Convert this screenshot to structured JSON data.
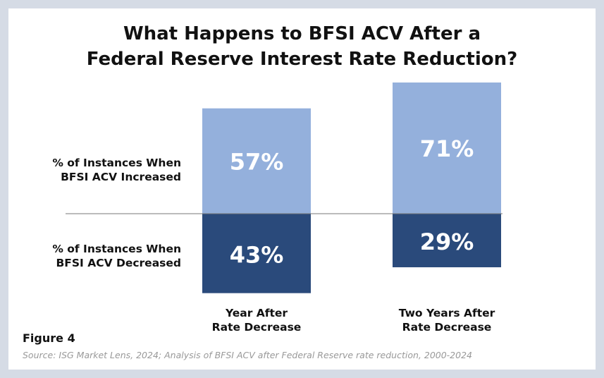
{
  "chart_data": {
    "type": "diverging",
    "title": "What Happens to BFSI ACV After a\nFederal Reserve Interest Rate Reduction?",
    "categories": [
      "Year After\nRate Decrease",
      "Two Years After\nRate Decrease"
    ],
    "series": [
      {
        "name": "% of Instances When\nBFSI ACV Increased",
        "color": "#94b0dc",
        "values": [
          57,
          71
        ],
        "value_labels": [
          "57%",
          "71%"
        ]
      },
      {
        "name": "% of Instances When\nBFSI ACV Decreased",
        "color": "#2a4a7b",
        "values": [
          43,
          29
        ],
        "value_labels": [
          "43%",
          "29%"
        ]
      }
    ],
    "figure_label": "Figure 4",
    "source": "Source: ISG Market Lens, 2024; Analysis of BFSI ACV after Federal Reserve rate reduction, 2000-2024"
  }
}
